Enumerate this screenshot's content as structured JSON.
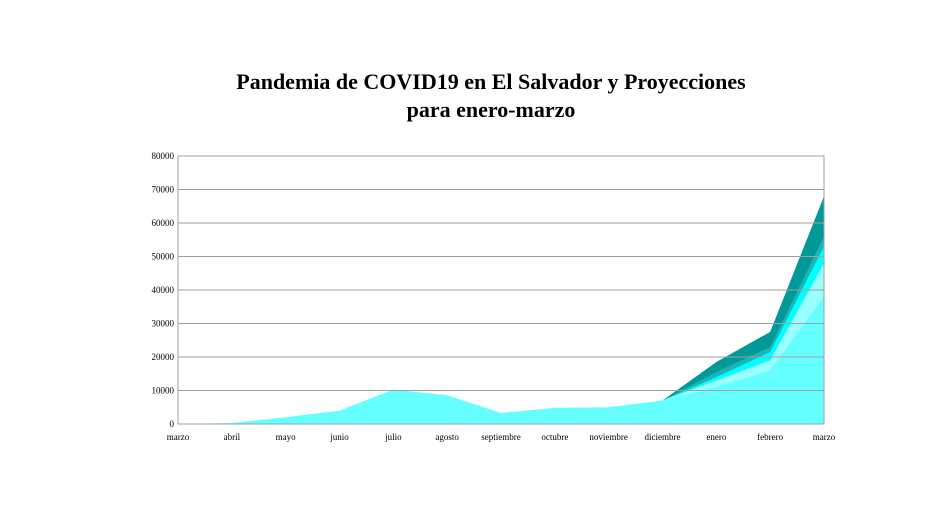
{
  "chart_data": {
    "type": "area",
    "title_line1": "Pandemia de COVID19 en El Salvador y Proyecciones",
    "title_line2": "para enero-marzo",
    "xlabel": "",
    "ylabel": "",
    "ylim": [
      0,
      80000
    ],
    "yticks": [
      0,
      10000,
      20000,
      30000,
      40000,
      50000,
      60000,
      70000,
      80000
    ],
    "categories": [
      "marzo",
      "abril",
      "mayo",
      "junio",
      "julio",
      "agosto",
      "septiembre",
      "octubre",
      "noviembre",
      "diciembre",
      "enero",
      "febrero",
      "marzo"
    ],
    "grid": true,
    "legend": "none",
    "series": [
      {
        "values": [
          0,
          300,
          2000,
          4000,
          10300,
          8600,
          3300,
          4800,
          5000,
          7000,
          11000,
          16000,
          38000
        ],
        "color": "#66ffff"
      },
      {
        "values": [
          null,
          null,
          null,
          null,
          null,
          null,
          null,
          null,
          null,
          7000,
          13000,
          19000,
          48000
        ],
        "color": "#99ffff"
      },
      {
        "values": [
          null,
          null,
          null,
          null,
          null,
          null,
          null,
          null,
          null,
          7000,
          14000,
          21500,
          53000
        ],
        "color": "#00ffff"
      },
      {
        "values": [
          null,
          null,
          null,
          null,
          null,
          null,
          null,
          null,
          null,
          7000,
          15500,
          23000,
          56000
        ],
        "color": "#1ab5b5"
      },
      {
        "values": [
          null,
          null,
          null,
          null,
          null,
          null,
          null,
          null,
          null,
          7000,
          18500,
          27500,
          68000
        ],
        "color": "#009999"
      }
    ]
  }
}
